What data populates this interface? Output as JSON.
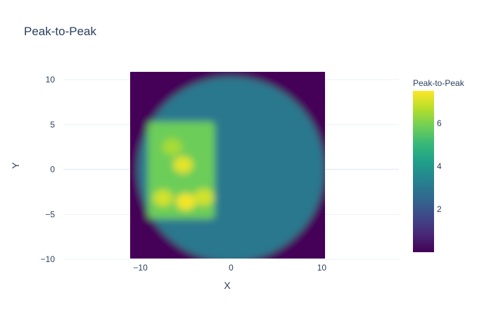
{
  "chart_data": {
    "type": "heatmap",
    "title": "Peak-to-Peak",
    "xlabel": "X",
    "ylabel": "Y",
    "xlim": [
      -18.5,
      18.5
    ],
    "ylim": [
      -10,
      10
    ],
    "x_ticks": [
      -10,
      0,
      10
    ],
    "x_tick_labels": [
      "−10",
      "0",
      "10"
    ],
    "y_ticks": [
      10,
      5,
      0,
      -5,
      -10
    ],
    "y_tick_labels": [
      "10",
      "5",
      "0",
      "−5",
      "−10"
    ],
    "grid": true,
    "colorscale": "Viridis",
    "colorbar": {
      "title": "Peak-to-Peak",
      "range": [
        0,
        7.5
      ],
      "ticks": [
        2,
        4,
        6
      ],
      "tick_labels": [
        "2",
        "4",
        "6"
      ]
    },
    "data_extent": {
      "x": [
        -10.8,
        10.8
      ],
      "y": [
        -9.8,
        10.2
      ]
    },
    "field": {
      "background_value": 0.1,
      "disk": {
        "center": [
          0,
          0
        ],
        "radius": 10.3,
        "value": 3.0
      },
      "hot_region": {
        "x": [
          -9.2,
          -1.8
        ],
        "y": [
          -5.5,
          5.3
        ],
        "value": 5.8
      },
      "hot_spots": [
        {
          "x": -5.3,
          "y": 0.5,
          "value": 7.2
        },
        {
          "x": -7.5,
          "y": -3.2,
          "value": 7.0
        },
        {
          "x": -5.0,
          "y": -3.6,
          "value": 7.4
        },
        {
          "x": -3.0,
          "y": -3.1,
          "value": 7.0
        },
        {
          "x": -6.5,
          "y": 2.5,
          "value": 6.5
        }
      ]
    },
    "colors": {
      "viridis_low": "#440154",
      "viridis_high": "#fde725",
      "text": "#2a3f5f",
      "grid": "#ebf0f8"
    }
  }
}
